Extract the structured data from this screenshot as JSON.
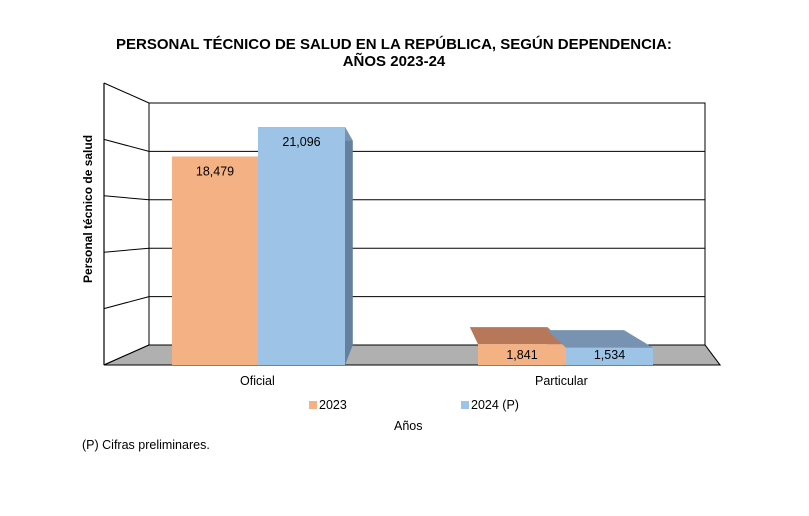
{
  "chart_data": {
    "type": "bar",
    "title_line1": "PERSONAL TÉCNICO DE SALUD EN LA REPÚBLICA, SEGÚN DEPENDENCIA:",
    "title_line2": "AÑOS 2023-24",
    "xlabel": "Años",
    "ylabel": "Personal técnico de salud",
    "categories": [
      "Oficial",
      "Particular"
    ],
    "series": [
      {
        "name": "2023",
        "values": [
          18479,
          1841
        ],
        "labels": [
          "18,479",
          "1,841"
        ],
        "color": "#f4b183",
        "side": "#b97d5e",
        "top": "#b7785a"
      },
      {
        "name": "2024 (P)",
        "values": [
          21096,
          1534
        ],
        "labels": [
          "21,096",
          "1,534"
        ],
        "color": "#9dc3e6",
        "side": "#63809e",
        "top": "#7893b1"
      }
    ],
    "ylim": [
      0,
      25000
    ],
    "grid_step": 5000,
    "grid": true,
    "legend_placement": "bottom",
    "footnote": "(P) Cifras  preliminares."
  }
}
